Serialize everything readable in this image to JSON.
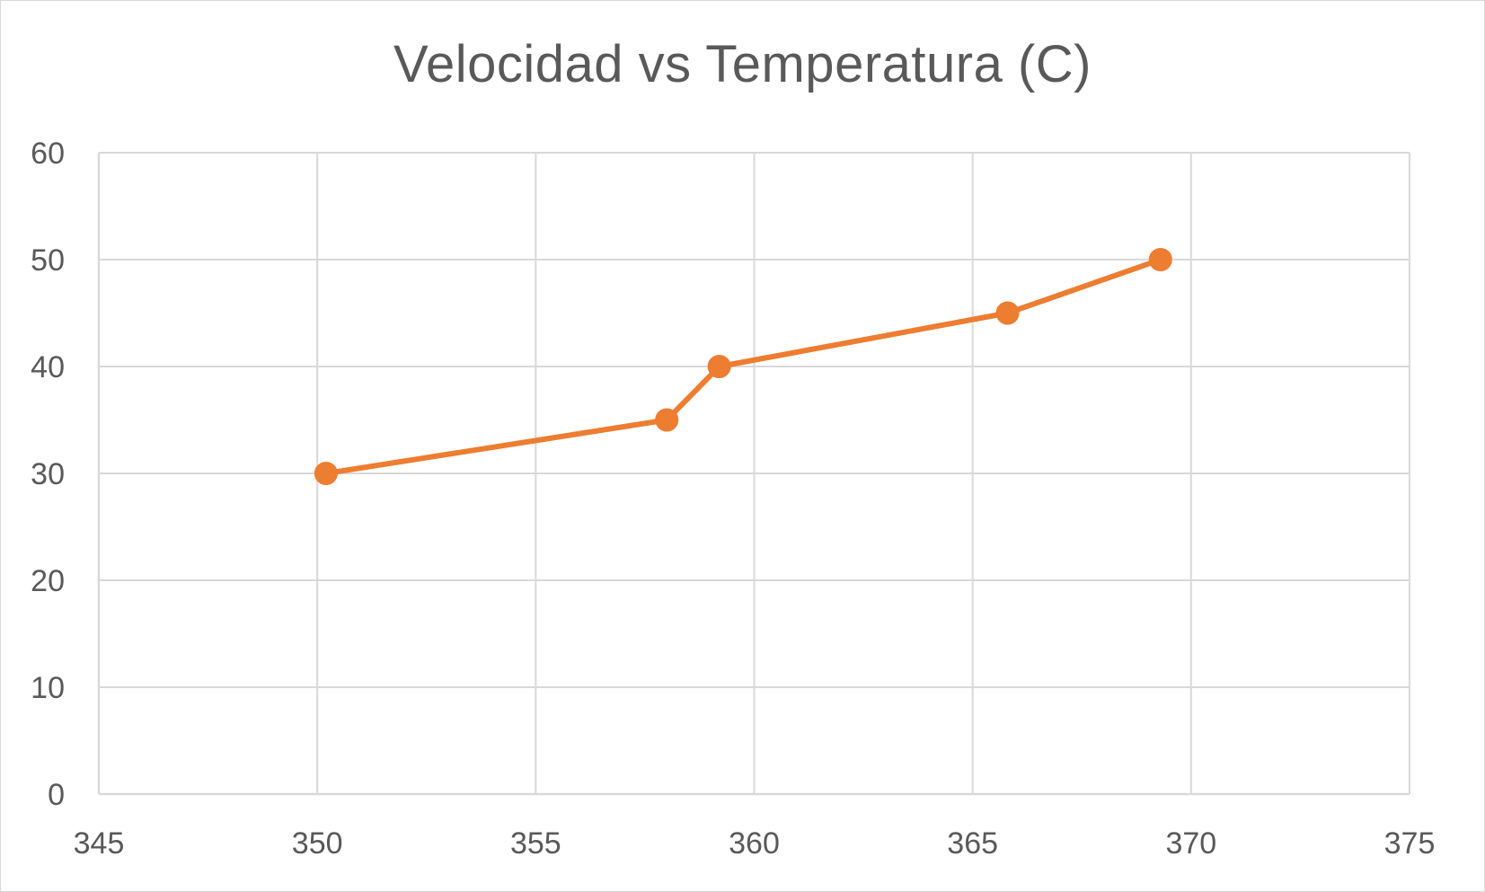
{
  "chart_data": {
    "type": "scatter",
    "title": "Velocidad vs Temperatura (C)",
    "xlabel": "",
    "ylabel": "",
    "xlim": [
      345,
      375
    ],
    "ylim": [
      0,
      60
    ],
    "x_ticks": [
      "345",
      "350",
      "355",
      "360",
      "365",
      "370",
      "375"
    ],
    "y_ticks": [
      "0",
      "10",
      "20",
      "30",
      "40",
      "50",
      "60"
    ],
    "grid": true,
    "legend": "none",
    "series": [
      {
        "color": "#ed7d31",
        "style": "lines-and-markers",
        "x": [
          350.2,
          358.0,
          359.2,
          365.8,
          369.3
        ],
        "y": [
          30,
          35,
          40,
          45,
          50
        ]
      }
    ]
  }
}
